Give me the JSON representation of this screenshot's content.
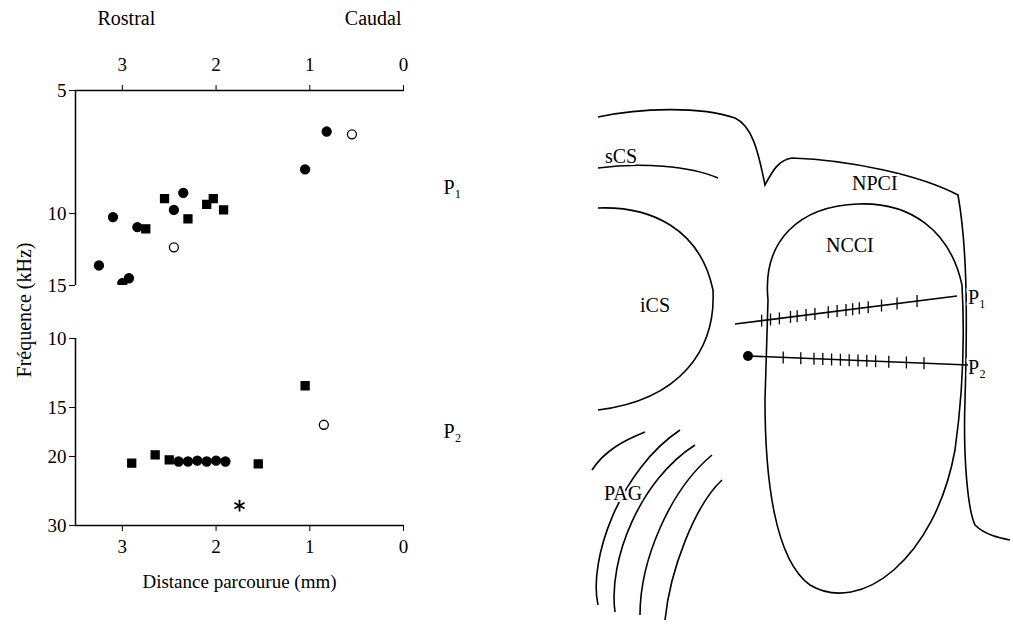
{
  "chart_data": [
    {
      "type": "scatter",
      "title": "P₁",
      "annotations": [
        "Rostral",
        "Caudal"
      ],
      "ylabel": "Fréquence (kHz)",
      "log": "y",
      "xlim": [
        3.5,
        0
      ],
      "xticks": [
        3,
        2,
        1,
        0
      ],
      "ylim": [
        5,
        15
      ],
      "yticks": [
        5,
        10,
        15
      ],
      "series": [
        {
          "marker": "circle",
          "color": "#000000",
          "x": [
            3.25,
            3.1,
            3.0,
            2.93,
            2.84,
            2.45,
            2.35,
            1.05,
            0.82
          ],
          "values": [
            13.4,
            10.2,
            14.8,
            14.4,
            10.8,
            9.8,
            8.9,
            7.8,
            6.3
          ]
        },
        {
          "marker": "square",
          "color": "#000000",
          "x": [
            2.75,
            2.55,
            2.3,
            2.1,
            2.03,
            1.92
          ],
          "values": [
            10.9,
            9.2,
            10.3,
            9.5,
            9.2,
            9.8
          ]
        },
        {
          "marker": "circle-open",
          "color": "#000000",
          "x": [
            2.45,
            0.55
          ],
          "values": [
            12.1,
            6.4
          ]
        }
      ]
    },
    {
      "type": "scatter",
      "title": "P₂",
      "xlabel": "Distance parcourue (mm)",
      "log": "y",
      "xlim": [
        3.5,
        0
      ],
      "xticks": [
        3,
        2,
        1,
        0
      ],
      "ylim": [
        10,
        30
      ],
      "yticks": [
        10,
        15,
        20,
        30
      ],
      "series": [
        {
          "marker": "square",
          "color": "#000000",
          "x": [
            2.9,
            2.65,
            2.5,
            1.55,
            1.05
          ],
          "values": [
            20.8,
            19.8,
            20.4,
            20.9,
            13.2
          ]
        },
        {
          "marker": "circle",
          "color": "#000000",
          "x": [
            2.4,
            2.3,
            2.2,
            2.1,
            2.0,
            1.9
          ],
          "values": [
            20.6,
            20.6,
            20.5,
            20.6,
            20.5,
            20.6
          ]
        },
        {
          "marker": "asterisk",
          "color": "#000000",
          "x": [
            1.75
          ],
          "values": [
            26.7
          ]
        },
        {
          "marker": "circle-open",
          "color": "#000000",
          "x": [
            0.85
          ],
          "values": [
            16.6
          ]
        }
      ]
    }
  ],
  "diagram": {
    "regions": [
      "sCS",
      "NPCI",
      "NCCI",
      "iCS",
      "PAG"
    ],
    "tracks": [
      "P₁",
      "P₂"
    ]
  }
}
